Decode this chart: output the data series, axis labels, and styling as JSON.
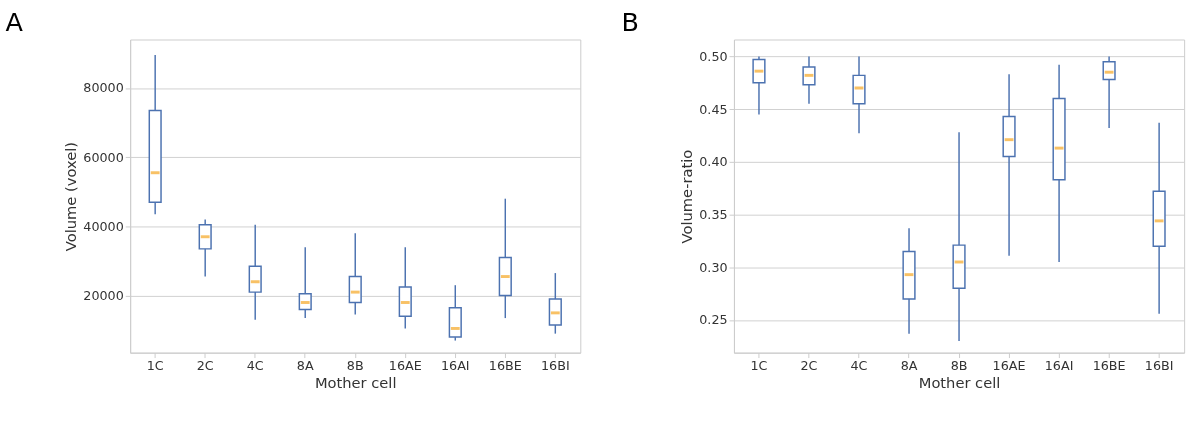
{
  "chart_data": [
    {
      "type": "box",
      "title": "A",
      "xlabel": "Mother cell",
      "ylabel": "Volume (voxel)",
      "categories": [
        "1C",
        "2C",
        "4C",
        "8A",
        "8B",
        "16AE",
        "16AI",
        "16BE",
        "16BI"
      ],
      "color": "#4c72b0",
      "grid": "y",
      "ylim": [
        3500,
        94000
      ],
      "yticks": [
        20000,
        40000,
        60000,
        80000
      ],
      "boxes": [
        {
          "low": 43500,
          "q1": 47000,
          "median": 55500,
          "q3": 73500,
          "high": 89500
        },
        {
          "low": 25500,
          "q1": 33500,
          "median": 37000,
          "q3": 40500,
          "high": 42000
        },
        {
          "low": 13000,
          "q1": 21000,
          "median": 24000,
          "q3": 28500,
          "high": 40500
        },
        {
          "low": 13500,
          "q1": 16000,
          "median": 18000,
          "q3": 20500,
          "high": 34000
        },
        {
          "low": 14500,
          "q1": 18000,
          "median": 21000,
          "q3": 25500,
          "high": 38000
        },
        {
          "low": 10500,
          "q1": 14000,
          "median": 18000,
          "q3": 22500,
          "high": 34000
        },
        {
          "low": 7000,
          "q1": 8000,
          "median": 10500,
          "q3": 16500,
          "high": 23000
        },
        {
          "low": 13500,
          "q1": 20000,
          "median": 25500,
          "q3": 31000,
          "high": 48000
        },
        {
          "low": 9000,
          "q1": 11500,
          "median": 15000,
          "q3": 19000,
          "high": 26500
        }
      ]
    },
    {
      "type": "box",
      "title": "B",
      "xlabel": "Mother cell",
      "ylabel": "Volume-ratio",
      "categories": [
        "1C",
        "2C",
        "4C",
        "8A",
        "8B",
        "16AE",
        "16AI",
        "16BE",
        "16BI"
      ],
      "color": "#4c72b0",
      "grid": "y",
      "ylim": [
        0.219,
        0.516
      ],
      "yticks": [
        {
          "value": 0.25,
          "label": "0.25"
        },
        {
          "value": 0.3,
          "label": "0.30"
        },
        {
          "value": 0.35,
          "label": "0.35"
        },
        {
          "value": 0.4,
          "label": "0.40"
        },
        {
          "value": 0.45,
          "label": "0.45"
        },
        {
          "value": 0.5,
          "label": "0.50"
        }
      ],
      "boxes": [
        {
          "low": 0.445,
          "q1": 0.475,
          "median": 0.486,
          "q3": 0.497,
          "high": 0.5
        },
        {
          "low": 0.455,
          "q1": 0.473,
          "median": 0.482,
          "q3": 0.49,
          "high": 0.5
        },
        {
          "low": 0.427,
          "q1": 0.455,
          "median": 0.47,
          "q3": 0.482,
          "high": 0.5
        },
        {
          "low": 0.237,
          "q1": 0.27,
          "median": 0.293,
          "q3": 0.315,
          "high": 0.337
        },
        {
          "low": 0.23,
          "q1": 0.28,
          "median": 0.305,
          "q3": 0.321,
          "high": 0.428
        },
        {
          "low": 0.311,
          "q1": 0.405,
          "median": 0.421,
          "q3": 0.443,
          "high": 0.483
        },
        {
          "low": 0.305,
          "q1": 0.383,
          "median": 0.413,
          "q3": 0.46,
          "high": 0.492
        },
        {
          "low": 0.432,
          "q1": 0.478,
          "median": 0.485,
          "q3": 0.495,
          "high": 0.5
        },
        {
          "low": 0.256,
          "q1": 0.32,
          "median": 0.344,
          "q3": 0.372,
          "high": 0.437
        }
      ]
    }
  ]
}
